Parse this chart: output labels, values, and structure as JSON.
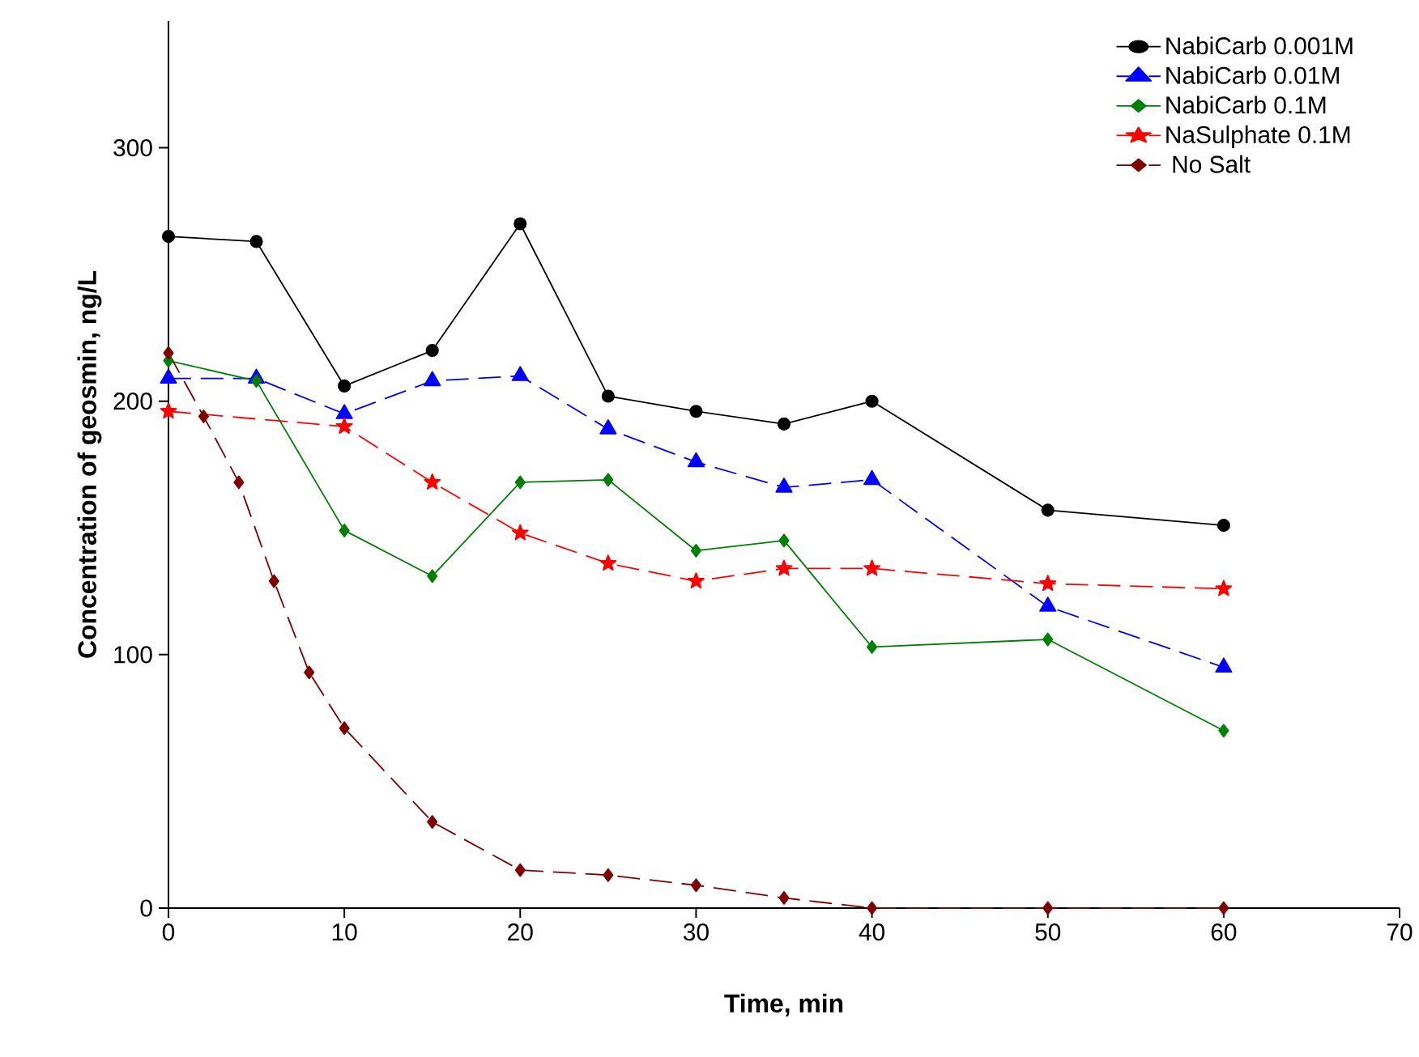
{
  "chart_data": {
    "type": "line",
    "xlabel": "Time, min",
    "ylabel": "Concentration of geosmin, ng/L",
    "xlim": [
      0,
      70
    ],
    "ylim": [
      0,
      350
    ],
    "xticks": [
      0,
      10,
      20,
      30,
      40,
      50,
      60,
      70
    ],
    "yticks": [
      0,
      100,
      200,
      300
    ],
    "grid": false,
    "legend": "top right",
    "series": [
      {
        "name": "NabiCarb 0.001M",
        "color": "#000000",
        "marker": "circle",
        "line_style": "solid",
        "x": [
          0,
          5,
          10,
          15,
          20,
          25,
          30,
          35,
          40,
          50,
          60
        ],
        "values": [
          265,
          263,
          206,
          220,
          270,
          202,
          196,
          191,
          200,
          157,
          151
        ]
      },
      {
        "name": "NabiCarb 0.01M",
        "color": "#0000ff",
        "marker": "triangle",
        "line_style": "dashed",
        "x": [
          0,
          5,
          10,
          15,
          20,
          25,
          30,
          35,
          40,
          50,
          60
        ],
        "values": [
          209,
          209,
          195,
          208,
          210,
          189,
          176,
          166,
          169,
          119,
          95
        ]
      },
      {
        "name": "NabiCarb 0.1M",
        "color": "#008000",
        "marker": "diamond",
        "line_style": "solid",
        "x": [
          0,
          5,
          10,
          15,
          20,
          25,
          30,
          35,
          40,
          50,
          60
        ],
        "values": [
          216,
          208,
          149,
          131,
          168,
          169,
          141,
          145,
          103,
          106,
          70
        ]
      },
      {
        "name": "NaSulphate 0.1M",
        "color": "#ff0000",
        "marker": "star",
        "line_style": "dashed",
        "x": [
          0,
          10,
          15,
          20,
          25,
          30,
          35,
          40,
          50,
          60
        ],
        "values": [
          196,
          190,
          168,
          148,
          136,
          129,
          134,
          134,
          128,
          126
        ]
      },
      {
        "name": " No Salt",
        "color": "#800000",
        "marker": "diamond",
        "line_style": "dashed",
        "x": [
          0,
          2,
          4,
          6,
          8,
          10,
          15,
          20,
          25,
          30,
          35,
          40,
          50,
          60
        ],
        "values": [
          219,
          194,
          168,
          129,
          93,
          71,
          34,
          15,
          13,
          9,
          4,
          0,
          0,
          0
        ]
      }
    ]
  }
}
